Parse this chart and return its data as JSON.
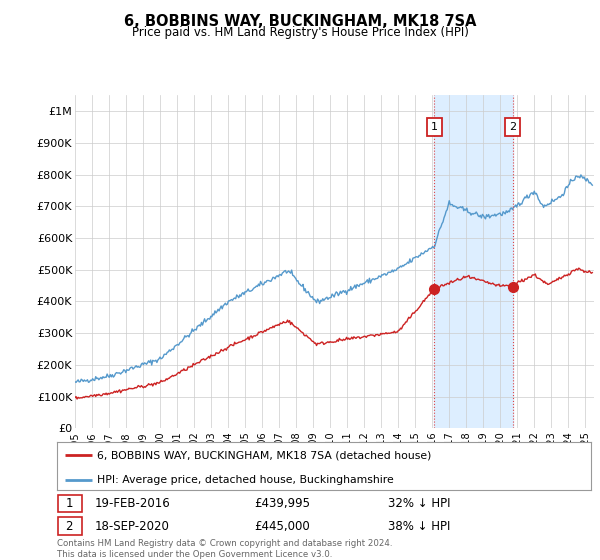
{
  "title": "6, BOBBINS WAY, BUCKINGHAM, MK18 7SA",
  "subtitle": "Price paid vs. HM Land Registry's House Price Index (HPI)",
  "ylim": [
    0,
    1050000
  ],
  "yticks": [
    0,
    100000,
    200000,
    300000,
    400000,
    500000,
    600000,
    700000,
    800000,
    900000,
    1000000
  ],
  "ytick_labels": [
    "£0",
    "£100K",
    "£200K",
    "£300K",
    "£400K",
    "£500K",
    "£600K",
    "£700K",
    "£800K",
    "£900K",
    "£1M"
  ],
  "xlim_start": 1995.0,
  "xlim_end": 2025.5,
  "hpi_color": "#5599cc",
  "price_color": "#cc2222",
  "point1_x": 2016.12,
  "point1_y": 439995,
  "point2_x": 2020.72,
  "point2_y": 445000,
  "vline_color": "#dd4444",
  "span_color": "#ddeeff",
  "legend_line1": "6, BOBBINS WAY, BUCKINGHAM, MK18 7SA (detached house)",
  "legend_line2": "HPI: Average price, detached house, Buckinghamshire",
  "annotation1_date": "19-FEB-2016",
  "annotation1_price": "£439,995",
  "annotation1_hpi": "32% ↓ HPI",
  "annotation2_date": "18-SEP-2020",
  "annotation2_price": "£445,000",
  "annotation2_hpi": "38% ↓ HPI",
  "footnote": "Contains HM Land Registry data © Crown copyright and database right 2024.\nThis data is licensed under the Open Government Licence v3.0.",
  "background_color": "#ffffff",
  "grid_color": "#cccccc",
  "annot_box_color": "#cc2222"
}
